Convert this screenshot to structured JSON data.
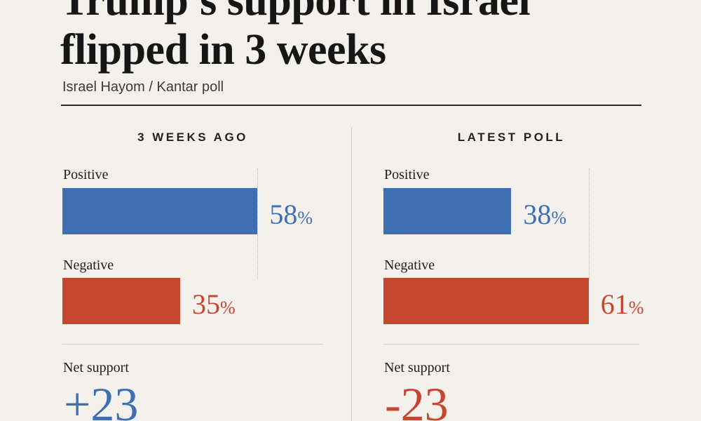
{
  "title_line_1": "Trump's support in Israel",
  "title_line_2": "flipped in 3 weeks",
  "subtitle": "Israel Hayom / Kantar poll",
  "chart_data": [
    {
      "type": "bar",
      "panel": "3 WEEKS AGO",
      "categories": [
        "Positive",
        "Negative"
      ],
      "values": [
        58,
        35
      ],
      "value_labels": [
        "58",
        "35"
      ],
      "unit": "%",
      "net_label": "Net support",
      "net_value": 23,
      "net_display": "+23",
      "colors": {
        "Positive": "#3f6fb3",
        "Negative": "#c5472f",
        "net": "#3f6fb3"
      },
      "xlim": [
        0,
        100
      ]
    },
    {
      "type": "bar",
      "panel": "LATEST POLL",
      "categories": [
        "Positive",
        "Negative"
      ],
      "values": [
        38,
        61
      ],
      "value_labels": [
        "38",
        "61"
      ],
      "unit": "%",
      "net_label": "Net support",
      "net_value": -23,
      "net_display": "-23",
      "colors": {
        "Positive": "#3f6fb3",
        "Negative": "#c5472f",
        "net": "#c5472f"
      },
      "xlim": [
        0,
        100
      ]
    }
  ]
}
